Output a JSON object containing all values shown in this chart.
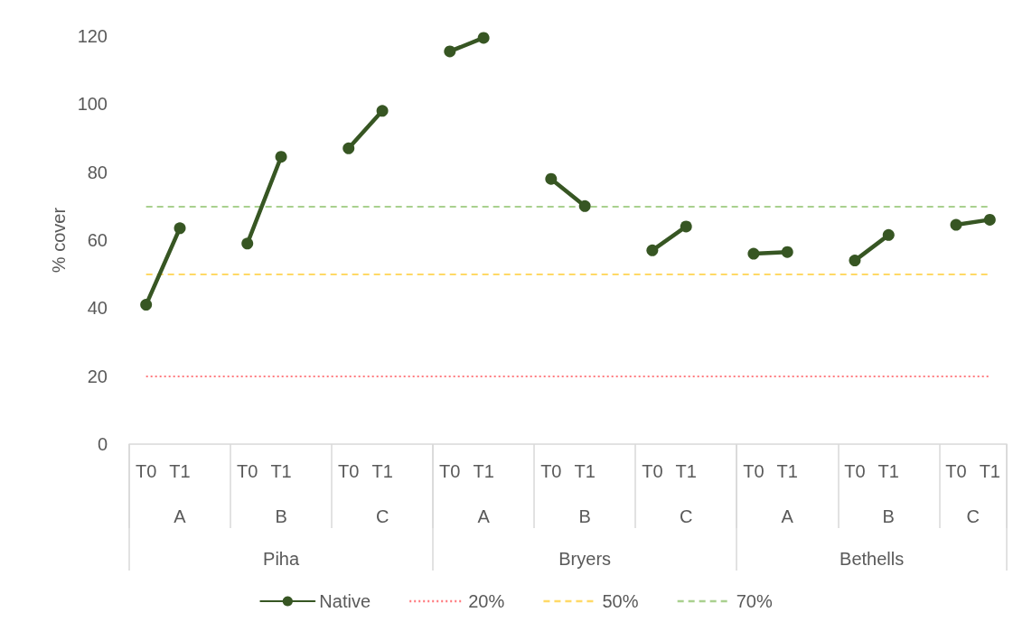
{
  "chart_data": {
    "type": "line",
    "ylabel": "% cover",
    "categories": [
      "T0",
      "T1",
      null,
      "T0",
      "T1",
      null,
      "T0",
      "T1",
      null,
      "T0",
      "T1",
      null,
      "T0",
      "T1",
      null,
      "T0",
      "T1",
      null,
      "T0",
      "T1",
      null,
      "T0",
      "T1",
      null,
      "T0",
      "T1"
    ],
    "series": [
      {
        "name": "Native",
        "color": "#375623",
        "values": [
          41,
          63.5,
          null,
          59,
          84.5,
          null,
          87,
          98,
          null,
          115.5,
          119.5,
          null,
          78,
          70,
          null,
          57,
          64,
          null,
          56,
          56.5,
          null,
          54,
          61.5,
          null,
          64.5,
          66
        ]
      }
    ],
    "ylim": [
      0,
      120
    ],
    "yticks": [
      0,
      20,
      40,
      60,
      80,
      100,
      120
    ],
    "ref_lines": [
      {
        "axis": "y",
        "value": 20,
        "label": "20%",
        "color": "#ff7c80",
        "line_style": "dotted"
      },
      {
        "axis": "y",
        "value": 50,
        "label": "50%",
        "color": "#ffd966",
        "line_style": "dashed"
      },
      {
        "axis": "y",
        "value": 70,
        "label": "70%",
        "color": "#a9d08e",
        "line_style": "dashed"
      }
    ],
    "annotations": [
      "A",
      "B",
      "C",
      "A",
      "B",
      "C",
      "A",
      "B",
      "C",
      "Piha",
      "Bryers",
      "Bethells"
    ],
    "legend": "bottom",
    "grid": false,
    "marker": "circle",
    "line_style": "solid"
  }
}
